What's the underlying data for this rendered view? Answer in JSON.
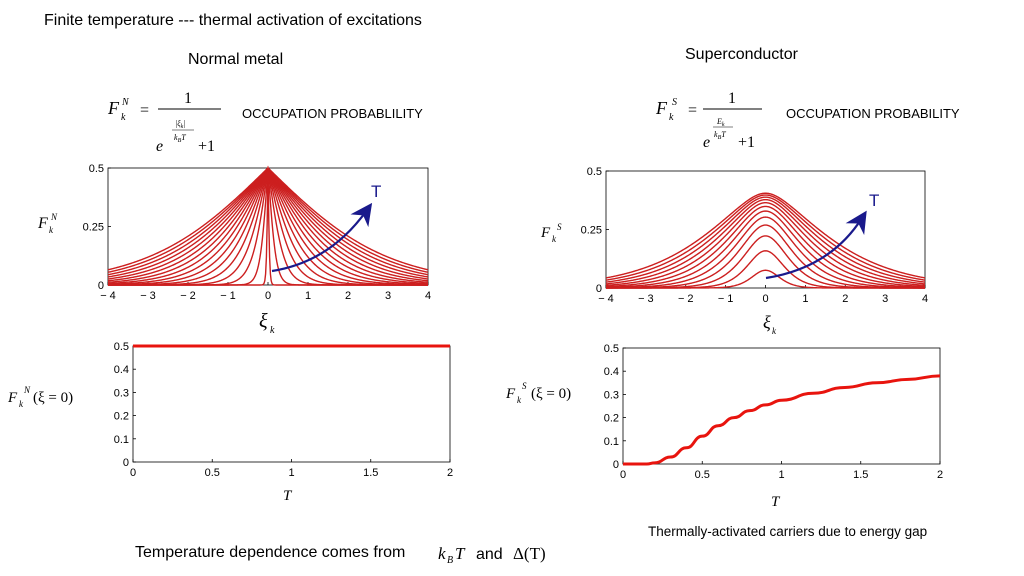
{
  "slide": {
    "title": "Finite temperature --- thermal activation of excitations",
    "normal_heading": "Normal metal",
    "super_heading": "Superconductor",
    "occupation_n": "OCCUPATION PROBABLILITY",
    "occupation_s": "OCCUPATION PROBABILITY",
    "note_s": "Thermally-activated carriers due to energy gap",
    "bottom_note": "Temperature dependence comes from",
    "bottom_and": "and"
  },
  "formulas": {
    "fn_lhs": "F",
    "fn_sup": "N",
    "fs_sup": "S",
    "sub_k": "k",
    "numerator": "1",
    "e": "e",
    "plus_one": "+1",
    "xi_k": "|ξ",
    "ek": "E",
    "kbt": "k",
    "kbt_b": "B",
    "kbt_t": "T",
    "delta_t": "Δ(T)",
    "xi0": "(ξ = 0)",
    "eq": "="
  },
  "colors": {
    "curve": "#cc1f1f",
    "curve_bold": "#e8140e",
    "arrow": "#1a1a8c",
    "arrow_label": "#1a1a8c"
  },
  "chart_data": [
    {
      "id": "normal-distribution",
      "type": "line",
      "xlabel": "ξk",
      "ylabel": "FkN",
      "xlim": [
        -4,
        4
      ],
      "ylim": [
        0,
        0.5
      ],
      "xticks": [
        "-4",
        "-3",
        "-2",
        "-1",
        "0",
        "1",
        "2",
        "3",
        "4"
      ],
      "yticks": [
        "0",
        "0.25",
        "0.5"
      ],
      "temperatures": [
        0.02,
        0.1,
        0.2,
        0.3,
        0.4,
        0.5,
        0.6,
        0.7,
        0.8,
        0.9,
        1.0,
        1.1,
        1.2,
        1.3,
        1.4,
        1.5
      ],
      "arrow_label": "T",
      "grid": false
    },
    {
      "id": "super-distribution",
      "type": "line",
      "xlabel": "ξk",
      "ylabel": "FkS",
      "xlim": [
        -4,
        4
      ],
      "ylim": [
        0,
        0.5
      ],
      "xticks": [
        "-4",
        "-3",
        "-2",
        "-1",
        "0",
        "1",
        "2",
        "3",
        "4"
      ],
      "yticks": [
        "0",
        "0.25",
        "0.5"
      ],
      "temperatures": [
        0.2,
        0.3,
        0.4,
        0.5,
        0.6,
        0.7,
        0.8,
        0.9,
        1.0,
        1.1,
        1.2,
        1.3
      ],
      "arrow_label": "T",
      "grid": false
    },
    {
      "id": "normal-vs-T",
      "type": "line",
      "xlabel": "T",
      "ylabel": "FkN(ξ=0)",
      "xlim": [
        0,
        2
      ],
      "ylim": [
        0,
        0.5
      ],
      "xticks": [
        "0",
        "0.5",
        "1",
        "1.5",
        "2"
      ],
      "yticks": [
        "0",
        "0.1",
        "0.2",
        "0.3",
        "0.4",
        "0.5"
      ],
      "series": [
        {
          "x": [
            0,
            0.5,
            1,
            1.5,
            2
          ],
          "y": [
            0.5,
            0.5,
            0.5,
            0.5,
            0.5
          ]
        }
      ],
      "grid": false
    },
    {
      "id": "super-vs-T",
      "type": "line",
      "xlabel": "T",
      "ylabel": "FkS(ξ=0)",
      "xlim": [
        0,
        2
      ],
      "ylim": [
        0,
        0.5
      ],
      "xticks": [
        "0",
        "0.5",
        "1",
        "1.5",
        "2"
      ],
      "yticks": [
        "0",
        "0.1",
        "0.2",
        "0.3",
        "0.4",
        "0.5"
      ],
      "series": [
        {
          "x": [
            0,
            0.15,
            0.2,
            0.3,
            0.4,
            0.5,
            0.6,
            0.7,
            0.8,
            0.9,
            1.0,
            1.2,
            1.4,
            1.6,
            1.8,
            2.0
          ],
          "y": [
            0.0,
            0.0,
            0.005,
            0.03,
            0.07,
            0.12,
            0.165,
            0.2,
            0.23,
            0.255,
            0.275,
            0.305,
            0.33,
            0.35,
            0.365,
            0.38
          ]
        }
      ],
      "grid": false
    }
  ]
}
